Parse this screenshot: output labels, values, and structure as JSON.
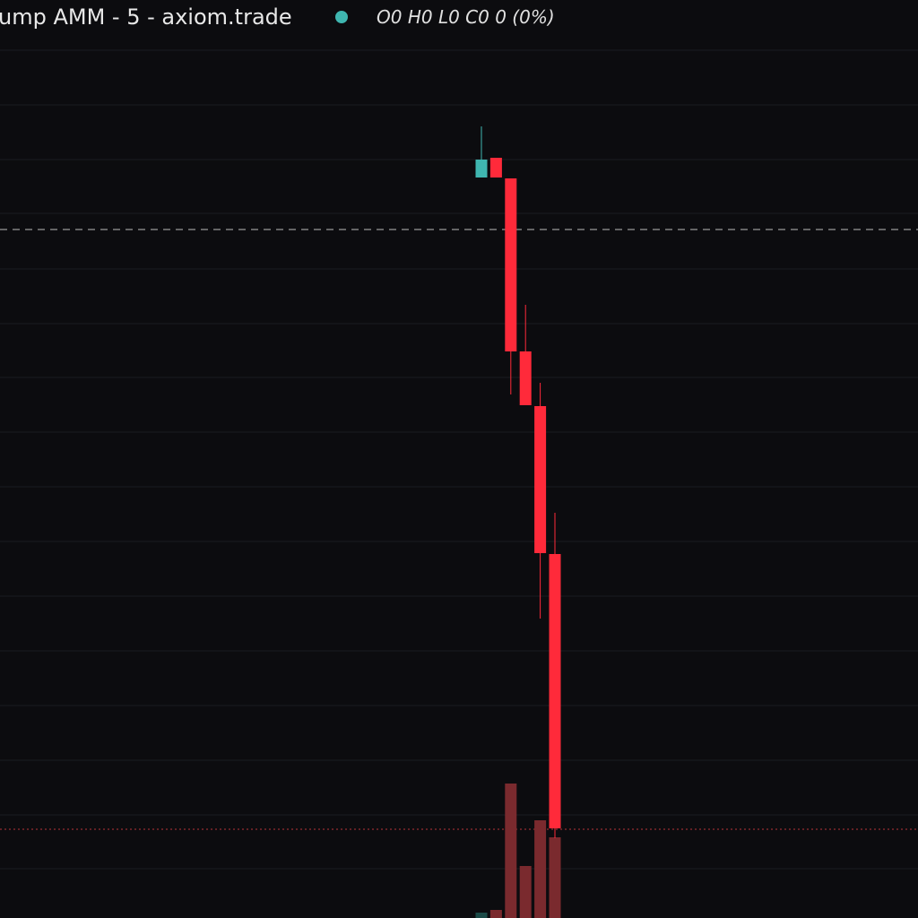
{
  "chart_data": {
    "type": "candlestick",
    "title": "ump AMM - 5 - axiom.trade",
    "ohlc_label": "O0 H0 L0 C0 0 (0%)",
    "ylim": [
      0,
      1024
    ],
    "ygrid": [
      968,
      907,
      846,
      786,
      724,
      663,
      603,
      542,
      481,
      420,
      359,
      298,
      237,
      176,
      115,
      55
    ],
    "up_color": "#3fb6b0",
    "down_color": "#ff2a3a",
    "volume_up_color": "#1b4a47",
    "volume_down_color": "#7a2a2e",
    "open": [
      826,
      848,
      825,
      632,
      571,
      406
    ],
    "high": [
      883,
      848,
      825,
      684,
      597,
      452
    ],
    "low": [
      826,
      826,
      584,
      572,
      334,
      89
    ],
    "close": [
      846,
      826,
      632,
      572,
      407,
      100
    ],
    "volume": [
      6,
      9,
      150,
      58,
      109,
      90
    ],
    "price_lines": [
      {
        "value": 768,
        "color": "#bbbbbb",
        "dash": "8 6"
      },
      {
        "value": 99,
        "color": "#b8333a",
        "dash": "2 3"
      }
    ]
  }
}
